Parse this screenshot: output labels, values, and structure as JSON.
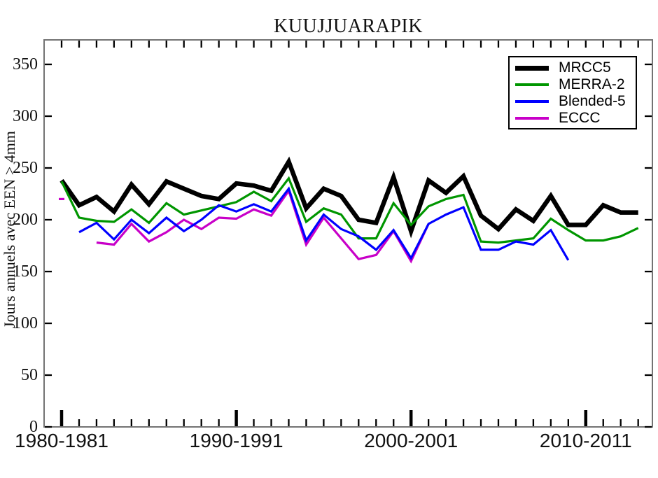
{
  "chart_data": {
    "type": "line",
    "title": "KUUJJUARAPIK",
    "ylabel": "Jours annuels avec EEN > 4mm",
    "grid": false,
    "legend_position": "top-right",
    "ylim": [
      0,
      374
    ],
    "yticks": [
      0,
      50,
      100,
      150,
      200,
      250,
      300,
      350
    ],
    "x_years_total": 34,
    "x_major_tick_indices": [
      0,
      10,
      20,
      30
    ],
    "x_major_tick_labels": [
      "1980-1981",
      "1990-1991",
      "2000-2001",
      "2010-2011"
    ],
    "series": [
      {
        "name": "MRCC5",
        "color": "#000000",
        "line_width": 6.5,
        "segments": [
          {
            "start_index": 0,
            "values": [
              238,
              214,
              222,
              208,
              234,
              215,
              237,
              230,
              223,
              220,
              235,
              233,
              228,
              256,
              211,
              230,
              223,
              200,
              197,
              241,
              189,
              238,
              226,
              242,
              204,
              191,
              210,
              199,
              223,
              195,
              195,
              214,
              207,
              207
            ]
          }
        ]
      },
      {
        "name": "MERRA-2",
        "color": "#009600",
        "line_width": 3.2,
        "segments": [
          {
            "start_index": 0,
            "values": [
              237,
              202,
              199,
              198,
              210,
              197,
              216,
              205,
              209,
              213,
              217,
              227,
              218,
              240,
              198,
              211,
              205,
              182,
              182,
              216,
              195,
              213,
              220,
              224,
              179,
              178,
              180,
              182,
              201,
              190,
              180,
              180,
              184,
              192
            ]
          }
        ]
      },
      {
        "name": "ECCC",
        "color": "#c800c8",
        "line_width": 3.2,
        "segments": [
          {
            "start_index": 0,
            "values": [
              220
            ]
          },
          {
            "start_index": 2,
            "values": [
              178,
              176,
              196,
              179,
              188,
              200,
              191,
              202,
              201,
              210,
              204,
              228,
              176,
              202,
              182,
              162,
              166,
              189,
              160,
              196
            ]
          }
        ]
      },
      {
        "name": "Blended-5",
        "color": "#0000ff",
        "line_width": 3.2,
        "segments": [
          {
            "start_index": 1,
            "values": [
              188,
              197,
              181,
              200,
              187,
              202,
              189,
              200,
              214,
              208,
              215,
              208,
              230,
              180,
              205,
              191,
              184,
              171,
              190,
              163,
              196,
              205,
              212,
              171,
              171,
              179,
              176,
              190,
              161
            ]
          }
        ]
      }
    ]
  },
  "legend": {
    "items": [
      {
        "label": "MRCC5",
        "color": "#000000",
        "thick": true
      },
      {
        "label": "MERRA-2",
        "color": "#009600",
        "thick": false
      },
      {
        "label": "Blended-5",
        "color": "#0000ff",
        "thick": false
      },
      {
        "label": "ECCC",
        "color": "#c800c8",
        "thick": false
      }
    ]
  }
}
